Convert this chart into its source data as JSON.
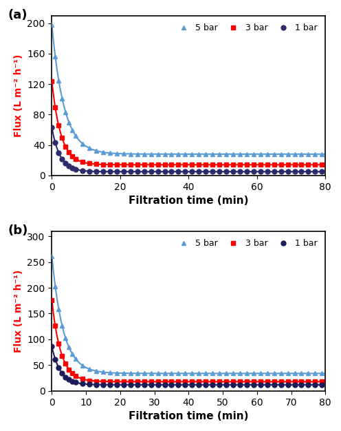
{
  "panel_a": {
    "label": "(a)",
    "ylim": [
      0,
      210
    ],
    "yticks": [
      0,
      40,
      80,
      120,
      160,
      200
    ],
    "xticks": [
      0,
      20,
      40,
      60,
      80
    ],
    "xlabel": "Filtration time (min)",
    "ylabel": "Flux (L m⁻² h⁻¹)",
    "series": {
      "5bar": {
        "color": "#5B9BD5",
        "marker": "^",
        "label": "5 bar",
        "A": 170,
        "B": 0.28,
        "C": 28
      },
      "3bar": {
        "color": "#FF0000",
        "marker": "s",
        "label": "3 bar",
        "A": 110,
        "B": 0.38,
        "C": 14
      },
      "1bar": {
        "color": "#2E2B6B",
        "marker": "o",
        "label": "1 bar",
        "A": 58,
        "B": 0.42,
        "C": 5
      }
    }
  },
  "panel_b": {
    "label": "(b)",
    "ylim": [
      0,
      310
    ],
    "yticks": [
      0,
      50,
      100,
      150,
      200,
      250,
      300
    ],
    "xticks": [
      0,
      10,
      20,
      30,
      40,
      50,
      60,
      70,
      80
    ],
    "xlabel": "Filtration time (min)",
    "ylabel": "Flux (L m⁻² h⁻¹)",
    "series": {
      "5bar": {
        "color": "#5B9BD5",
        "marker": "^",
        "label": "5 bar",
        "A": 228,
        "B": 0.3,
        "C": 34
      },
      "3bar": {
        "color": "#FF0000",
        "marker": "s",
        "label": "3 bar",
        "A": 158,
        "B": 0.38,
        "C": 18
      },
      "1bar": {
        "color": "#1C1C5A",
        "marker": "o",
        "label": "1 bar",
        "A": 74,
        "B": 0.4,
        "C": 12
      }
    }
  },
  "legend_order": [
    "5bar",
    "3bar",
    "1bar"
  ],
  "markersize": 5,
  "linewidth": 1.5,
  "marker_every_early": [
    0,
    1,
    2,
    3,
    4,
    5,
    6
  ],
  "marker_every_late_step": 2
}
